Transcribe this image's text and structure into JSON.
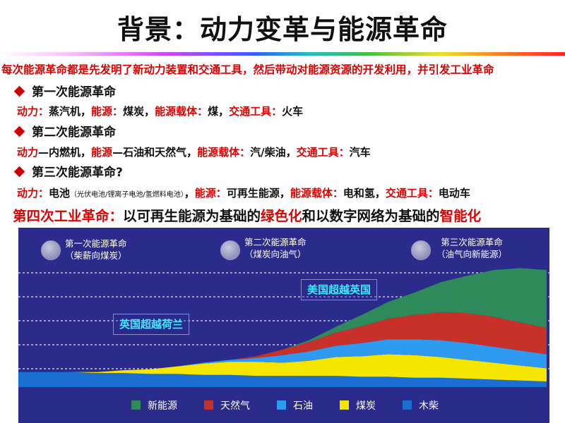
{
  "title": "背景：动力变革与能源革命",
  "intro": "每次能源革命都是先发明了新动力装置和交通工具，然后带动对能源资源的开发利用，并引发工业革命",
  "labels": {
    "power": "动力：",
    "energy": "能源：",
    "carrier": "能源载体：",
    "transport": "交通工具："
  },
  "revolutions": [
    {
      "heading": "第一次能源革命",
      "power": "蒸汽机",
      "energy": "煤炭",
      "carrier": "煤",
      "transport": "火车"
    },
    {
      "heading": "第二次能源革命",
      "power_label": "动力",
      "power": "—内燃机",
      "energy_label": "能源",
      "energy": "—石油和天然气",
      "carrier": "汽/柴油",
      "transport": "汽车"
    },
    {
      "heading": "第三次能源革命?",
      "power": "电池",
      "power_note": "（光伏电池/锂离子电池/氢燃料电池）",
      "energy": "可再生能源",
      "carrier": "电和氢",
      "transport": "电动车"
    }
  ],
  "fourth": {
    "prefix": "第四次工业革命：",
    "part1": "以可再生能源为基础的",
    "green": "绿色化",
    "part2": "和以数字网络为基础的",
    "smart": "智能化"
  },
  "chart_data": {
    "type": "area",
    "eras": [
      {
        "name": "第一次能源革命",
        "sub": "（柴薪向煤炭）"
      },
      {
        "name": "第二次能源革命",
        "sub": "（煤炭向油气）"
      },
      {
        "name": "第三次能源革命",
        "sub": "（油气向新能源）"
      }
    ],
    "annotations": [
      "英国超越荷兰",
      "美国超越英国"
    ],
    "x": [
      0,
      1,
      2,
      3,
      4,
      5,
      6,
      7,
      8,
      9,
      10,
      11,
      12,
      13,
      14,
      15,
      16,
      17,
      18,
      19,
      20
    ],
    "series": [
      {
        "name": "木柴",
        "color": "#1a6fd0",
        "values": [
          16,
          16,
          16,
          15,
          15,
          14,
          14,
          13,
          13,
          12,
          12,
          12,
          12,
          11,
          11,
          10,
          10,
          9,
          8,
          7,
          6
        ]
      },
      {
        "name": "煤炭",
        "color": "#f5e600",
        "values": [
          0,
          0,
          0,
          1,
          3,
          5,
          8,
          12,
          14,
          15,
          14,
          16,
          20,
          22,
          24,
          24,
          22,
          20,
          18,
          16,
          14
        ]
      },
      {
        "name": "石油",
        "color": "#2e9bf0",
        "values": [
          0,
          0,
          0,
          0,
          0,
          0,
          0,
          1,
          2,
          4,
          8,
          10,
          12,
          14,
          16,
          17,
          18,
          18,
          17,
          16,
          15
        ]
      },
      {
        "name": "天然气",
        "color": "#c8302a",
        "values": [
          0,
          0,
          0,
          0,
          0,
          0,
          0,
          0,
          0,
          2,
          6,
          10,
          14,
          18,
          22,
          26,
          30,
          32,
          32,
          30,
          28
        ]
      },
      {
        "name": "新能源",
        "color": "#2e8a5a",
        "values": [
          0,
          0,
          0,
          0,
          0,
          0,
          0,
          0,
          0,
          0,
          0,
          2,
          6,
          12,
          18,
          24,
          32,
          40,
          50,
          58,
          62
        ]
      }
    ],
    "legend_order": [
      "新能源",
      "天然气",
      "石油",
      "煤炭",
      "木柴"
    ],
    "grid": true,
    "legend": "bottom"
  }
}
